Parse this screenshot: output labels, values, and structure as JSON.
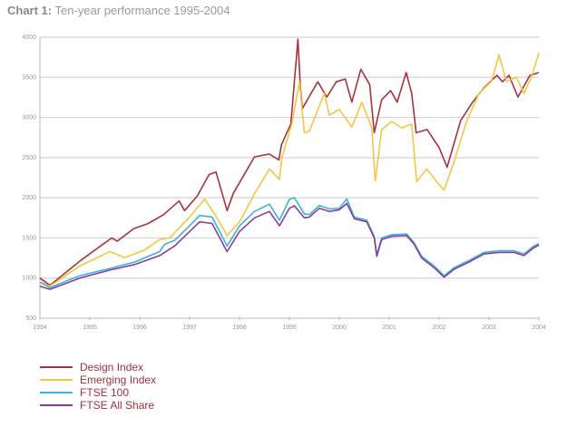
{
  "title": {
    "bold": "Chart 1:",
    "rest": "Ten-year performance 1995-2004"
  },
  "chart_data": {
    "type": "line",
    "title": "Chart 1: Ten-year performance 1995-2004",
    "xlabel": "",
    "ylabel": "",
    "xlim": [
      1994,
      2004
    ],
    "ylim": [
      500,
      4000
    ],
    "grid": true,
    "legend_position": "bottom-left",
    "x_ticks": [
      "1994",
      "1995",
      "1996",
      "1997",
      "1998",
      "1999",
      "2000",
      "2001",
      "2002",
      "2003",
      "2004"
    ],
    "y_ticks": [
      "500",
      "1000",
      "1500",
      "2000",
      "2500",
      "3000",
      "3500",
      "4000"
    ],
    "series": [
      {
        "name": "Design Index",
        "color": "#a8323e",
        "points": [
          [
            1994.0,
            1000
          ],
          [
            1994.2,
            910
          ],
          [
            1994.84,
            1230
          ],
          [
            1995.44,
            1500
          ],
          [
            1995.55,
            1460
          ],
          [
            1995.88,
            1615
          ],
          [
            1996.17,
            1680
          ],
          [
            1996.48,
            1790
          ],
          [
            1996.79,
            1960
          ],
          [
            1996.9,
            1840
          ],
          [
            1997.15,
            2020
          ],
          [
            1997.39,
            2290
          ],
          [
            1997.53,
            2320
          ],
          [
            1997.75,
            1840
          ],
          [
            1997.88,
            2060
          ],
          [
            1998.3,
            2510
          ],
          [
            1998.6,
            2545
          ],
          [
            1998.79,
            2470
          ],
          [
            1998.84,
            2660
          ],
          [
            1999.03,
            2920
          ],
          [
            1999.17,
            3975
          ],
          [
            1999.22,
            3370
          ],
          [
            1999.26,
            3110
          ],
          [
            1999.39,
            3255
          ],
          [
            1999.57,
            3445
          ],
          [
            1999.75,
            3255
          ],
          [
            1999.94,
            3445
          ],
          [
            2000.12,
            3480
          ],
          [
            2000.25,
            3190
          ],
          [
            2000.43,
            3600
          ],
          [
            2000.61,
            3410
          ],
          [
            2000.7,
            2810
          ],
          [
            2000.85,
            3220
          ],
          [
            2001.03,
            3335
          ],
          [
            2001.16,
            3190
          ],
          [
            2001.34,
            3560
          ],
          [
            2001.45,
            3300
          ],
          [
            2001.54,
            2810
          ],
          [
            2001.76,
            2850
          ],
          [
            2002.0,
            2625
          ],
          [
            2002.16,
            2380
          ],
          [
            2002.43,
            2960
          ],
          [
            2002.67,
            3190
          ],
          [
            2002.9,
            3370
          ],
          [
            2003.16,
            3525
          ],
          [
            2003.27,
            3445
          ],
          [
            2003.4,
            3525
          ],
          [
            2003.58,
            3255
          ],
          [
            2003.82,
            3525
          ],
          [
            2004.0,
            3560
          ]
        ]
      },
      {
        "name": "Emerging Index",
        "color": "#f2c744",
        "points": [
          [
            1994.0,
            950
          ],
          [
            1994.2,
            900
          ],
          [
            1994.8,
            1150
          ],
          [
            1995.4,
            1330
          ],
          [
            1995.7,
            1255
          ],
          [
            1996.1,
            1350
          ],
          [
            1996.4,
            1480
          ],
          [
            1996.6,
            1500
          ],
          [
            1997.0,
            1760
          ],
          [
            1997.3,
            1985
          ],
          [
            1997.5,
            1800
          ],
          [
            1997.75,
            1530
          ],
          [
            1998.0,
            1700
          ],
          [
            1998.3,
            2050
          ],
          [
            1998.6,
            2360
          ],
          [
            1998.8,
            2230
          ],
          [
            1998.85,
            2500
          ],
          [
            1999.05,
            2920
          ],
          [
            1999.2,
            3445
          ],
          [
            1999.3,
            2810
          ],
          [
            1999.4,
            2830
          ],
          [
            1999.7,
            3300
          ],
          [
            1999.8,
            3030
          ],
          [
            2000.0,
            3100
          ],
          [
            2000.25,
            2880
          ],
          [
            2000.45,
            3190
          ],
          [
            2000.65,
            2870
          ],
          [
            2000.72,
            2210
          ],
          [
            2000.85,
            2850
          ],
          [
            2001.05,
            2950
          ],
          [
            2001.25,
            2870
          ],
          [
            2001.45,
            2920
          ],
          [
            2001.55,
            2200
          ],
          [
            2001.75,
            2360
          ],
          [
            2001.95,
            2200
          ],
          [
            2002.1,
            2095
          ],
          [
            2002.3,
            2450
          ],
          [
            2002.55,
            2950
          ],
          [
            2002.8,
            3300
          ],
          [
            2003.05,
            3450
          ],
          [
            2003.2,
            3780
          ],
          [
            2003.35,
            3450
          ],
          [
            2003.55,
            3500
          ],
          [
            2003.7,
            3300
          ],
          [
            2003.85,
            3500
          ],
          [
            2004.0,
            3805
          ]
        ]
      },
      {
        "name": "FTSE 100",
        "color": "#3bb4d8",
        "points": [
          [
            1994.0,
            950
          ],
          [
            1994.2,
            880
          ],
          [
            1994.8,
            1030
          ],
          [
            1995.4,
            1120
          ],
          [
            1995.9,
            1200
          ],
          [
            1996.4,
            1330
          ],
          [
            1996.5,
            1420
          ],
          [
            1996.7,
            1470
          ],
          [
            1997.0,
            1650
          ],
          [
            1997.2,
            1780
          ],
          [
            1997.45,
            1760
          ],
          [
            1997.75,
            1400
          ],
          [
            1998.0,
            1650
          ],
          [
            1998.3,
            1830
          ],
          [
            1998.6,
            1920
          ],
          [
            1998.8,
            1720
          ],
          [
            1999.0,
            1980
          ],
          [
            1999.1,
            2000
          ],
          [
            1999.3,
            1800
          ],
          [
            1999.4,
            1790
          ],
          [
            1999.6,
            1905
          ],
          [
            1999.8,
            1860
          ],
          [
            2000.0,
            1870
          ],
          [
            2000.15,
            1985
          ],
          [
            2000.3,
            1760
          ],
          [
            2000.55,
            1720
          ],
          [
            2000.7,
            1520
          ],
          [
            2000.75,
            1290
          ],
          [
            2000.85,
            1500
          ],
          [
            2001.05,
            1540
          ],
          [
            2001.35,
            1550
          ],
          [
            2001.5,
            1440
          ],
          [
            2001.65,
            1270
          ],
          [
            2001.9,
            1150
          ],
          [
            2002.1,
            1030
          ],
          [
            2002.3,
            1130
          ],
          [
            2002.6,
            1220
          ],
          [
            2002.9,
            1320
          ],
          [
            2003.2,
            1340
          ],
          [
            2003.5,
            1340
          ],
          [
            2003.7,
            1300
          ],
          [
            2003.9,
            1400
          ],
          [
            2004.0,
            1430
          ]
        ]
      },
      {
        "name": "FTSE All Share",
        "color": "#8a3ca0",
        "points": [
          [
            1994.0,
            900
          ],
          [
            1994.2,
            860
          ],
          [
            1994.8,
            1000
          ],
          [
            1995.4,
            1100
          ],
          [
            1995.9,
            1170
          ],
          [
            1996.4,
            1280
          ],
          [
            1996.7,
            1400
          ],
          [
            1997.0,
            1580
          ],
          [
            1997.2,
            1700
          ],
          [
            1997.45,
            1680
          ],
          [
            1997.75,
            1330
          ],
          [
            1998.0,
            1580
          ],
          [
            1998.3,
            1750
          ],
          [
            1998.6,
            1830
          ],
          [
            1998.8,
            1650
          ],
          [
            1999.0,
            1870
          ],
          [
            1999.1,
            1900
          ],
          [
            1999.3,
            1750
          ],
          [
            1999.4,
            1760
          ],
          [
            1999.6,
            1870
          ],
          [
            1999.8,
            1830
          ],
          [
            2000.0,
            1850
          ],
          [
            2000.15,
            1930
          ],
          [
            2000.3,
            1740
          ],
          [
            2000.55,
            1700
          ],
          [
            2000.7,
            1500
          ],
          [
            2000.75,
            1270
          ],
          [
            2000.85,
            1480
          ],
          [
            2001.05,
            1520
          ],
          [
            2001.35,
            1530
          ],
          [
            2001.5,
            1420
          ],
          [
            2001.65,
            1250
          ],
          [
            2001.9,
            1130
          ],
          [
            2002.1,
            1010
          ],
          [
            2002.3,
            1110
          ],
          [
            2002.6,
            1200
          ],
          [
            2002.9,
            1300
          ],
          [
            2003.2,
            1320
          ],
          [
            2003.5,
            1320
          ],
          [
            2003.7,
            1280
          ],
          [
            2003.9,
            1380
          ],
          [
            2004.0,
            1410
          ]
        ]
      }
    ]
  }
}
